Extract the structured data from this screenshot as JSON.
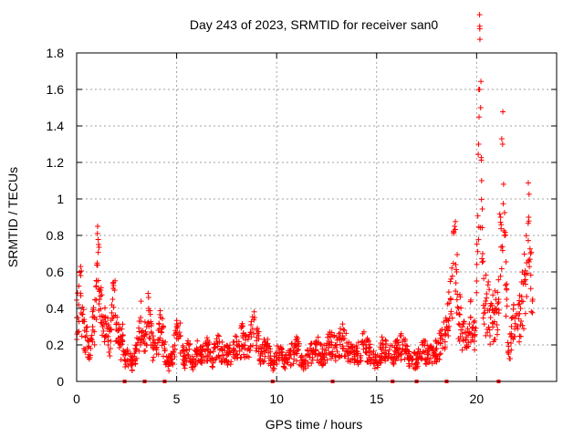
{
  "chart_data": {
    "type": "scatter",
    "title": "Day 243 of 2023, SRMTID for receiver san0",
    "xlabel": "GPS time / hours",
    "ylabel": "SRMTID / TECUs",
    "xlim": [
      0,
      24
    ],
    "ylim": [
      0,
      1.8
    ],
    "xticks": [
      0,
      5,
      10,
      15,
      20
    ],
    "xtick_labels": [
      "0",
      "5",
      "10",
      "15",
      "20"
    ],
    "yticks": [
      0,
      0.2,
      0.4,
      0.6,
      0.8,
      1,
      1.2,
      1.4,
      1.6,
      1.8
    ],
    "ytick_labels": [
      "0",
      "0.2",
      "0.4",
      "0.6",
      "0.8",
      "1",
      "1.2",
      "1.4",
      "1.6",
      "1.8"
    ],
    "grid": true,
    "marker": "plus",
    "marker_color": "#ff0000",
    "series": [
      {
        "name": "san0",
        "x": [
          0.0,
          0.1,
          0.2,
          0.3,
          0.4,
          0.5,
          0.6,
          0.7,
          0.8,
          0.9,
          1.0,
          1.05,
          1.1,
          1.15,
          1.2,
          1.3,
          1.4,
          1.5,
          1.6,
          1.7,
          1.8,
          1.9,
          2.0,
          2.1,
          2.2,
          2.3,
          2.4,
          2.6,
          2.8,
          3.0,
          3.2,
          3.4,
          3.5,
          3.6,
          3.8,
          4.0,
          4.2,
          4.4,
          4.6,
          4.8,
          5.0,
          5.2,
          5.4,
          5.6,
          5.8,
          6.0,
          6.2,
          6.5,
          6.8,
          7.0,
          7.3,
          7.6,
          8.0,
          8.3,
          8.6,
          8.9,
          9.2,
          9.5,
          9.8,
          10.1,
          10.4,
          10.7,
          11.0,
          11.3,
          11.6,
          12.0,
          12.3,
          12.6,
          13.0,
          13.3,
          13.6,
          14.0,
          14.3,
          14.6,
          15.0,
          15.3,
          15.6,
          16.0,
          16.3,
          16.6,
          17.0,
          17.3,
          17.6,
          18.0,
          18.3,
          18.5,
          18.7,
          18.9,
          19.0,
          19.1,
          19.3,
          19.5,
          19.7,
          19.9,
          20.0,
          20.1,
          20.15,
          20.2,
          20.25,
          20.3,
          20.4,
          20.5,
          20.7,
          20.9,
          21.0,
          21.1,
          21.2,
          21.3,
          21.4,
          21.5,
          21.6,
          21.8,
          22.0,
          22.2,
          22.4,
          22.5,
          22.6,
          22.7,
          22.8
        ],
        "y": [
          0.35,
          0.42,
          0.58,
          0.33,
          0.28,
          0.25,
          0.22,
          0.18,
          0.3,
          0.35,
          0.55,
          0.85,
          0.75,
          0.45,
          0.5,
          0.3,
          0.35,
          0.25,
          0.3,
          0.22,
          0.45,
          0.5,
          0.32,
          0.28,
          0.2,
          0.25,
          0.12,
          0.15,
          0.1,
          0.2,
          0.35,
          0.25,
          0.3,
          0.4,
          0.2,
          0.15,
          0.35,
          0.18,
          0.1,
          0.15,
          0.3,
          0.25,
          0.12,
          0.2,
          0.1,
          0.18,
          0.15,
          0.2,
          0.12,
          0.22,
          0.18,
          0.15,
          0.2,
          0.25,
          0.18,
          0.35,
          0.15,
          0.2,
          0.1,
          0.18,
          0.12,
          0.15,
          0.2,
          0.1,
          0.15,
          0.2,
          0.15,
          0.22,
          0.2,
          0.25,
          0.18,
          0.15,
          0.22,
          0.18,
          0.1,
          0.2,
          0.15,
          0.18,
          0.22,
          0.15,
          0.12,
          0.2,
          0.15,
          0.18,
          0.25,
          0.3,
          0.45,
          0.85,
          0.6,
          0.4,
          0.3,
          0.2,
          0.35,
          0.25,
          0.55,
          1.3,
          1.6,
          1.5,
          1.1,
          0.7,
          0.4,
          0.48,
          0.35,
          0.4,
          0.38,
          0.45,
          0.9,
          1.3,
          0.8,
          0.45,
          0.15,
          0.35,
          0.3,
          0.4,
          0.55,
          0.65,
          0.9,
          0.7,
          0.45
        ]
      }
    ],
    "zero_points_x": [
      2.4,
      3.4,
      4.4,
      9.8,
      12.8,
      15.8,
      17.0,
      18.5,
      21.1
    ]
  }
}
